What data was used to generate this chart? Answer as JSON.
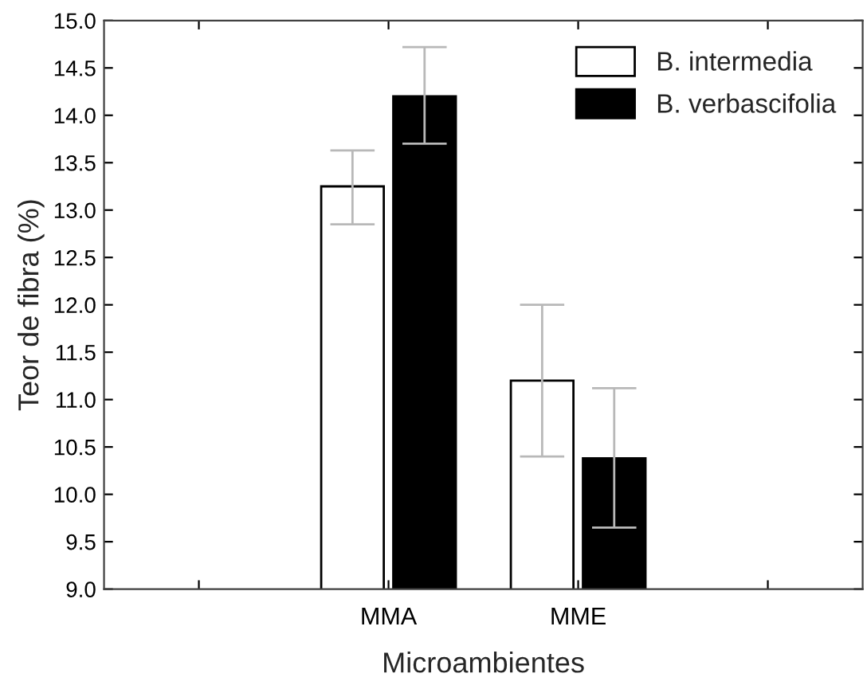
{
  "chart_data": {
    "type": "bar",
    "xlabel": "Microambientes",
    "ylabel": "Teor de fibra (%)",
    "categories": [
      null,
      "MMA",
      "MME",
      null
    ],
    "series": [
      {
        "name": "B. intermedia",
        "color": "#ffffff",
        "values": [
          null,
          13.25,
          11.2,
          null
        ],
        "errors": [
          null,
          [
            12.85,
            13.63
          ],
          [
            10.4,
            12.0
          ],
          null
        ]
      },
      {
        "name": "B. verbascifolia",
        "color": "#000000",
        "values": [
          null,
          14.2,
          10.38,
          null
        ],
        "errors": [
          null,
          [
            13.7,
            14.72
          ],
          [
            9.65,
            11.12
          ],
          null
        ]
      }
    ],
    "ylim": [
      9.0,
      15.0
    ],
    "yticks": [
      {
        "value": 9.0,
        "label": "9.0"
      },
      {
        "value": 9.5,
        "label": "9.5"
      },
      {
        "value": 10.0,
        "label": "10.0"
      },
      {
        "value": 10.5,
        "label": "10.5"
      },
      {
        "value": 11.0,
        "label": "11.0"
      },
      {
        "value": 11.5,
        "label": "11.5"
      },
      {
        "value": 12.0,
        "label": "12.0"
      },
      {
        "value": 12.5,
        "label": "12.5"
      },
      {
        "value": 13.0,
        "label": "13.0"
      },
      {
        "value": 13.5,
        "label": "13.5"
      },
      {
        "value": 14.0,
        "label": "14.0"
      },
      {
        "value": 14.5,
        "label": "14.5"
      },
      {
        "value": 15.0,
        "label": "15.0"
      }
    ],
    "grid": false,
    "legend": "top right"
  }
}
